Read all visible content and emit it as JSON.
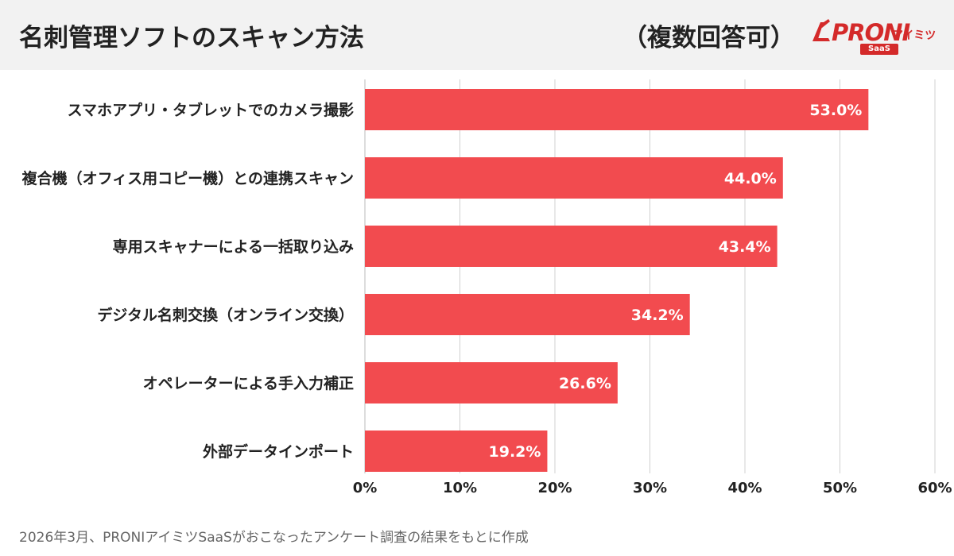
{
  "header": {
    "title": "名刺管理ソフトのスキャン方法",
    "subtitle": "（複数回答可）"
  },
  "logo": {
    "brand": "PRONI",
    "sub": "アイミツ",
    "badge": "SaaS"
  },
  "footer": {
    "note": "2026年3月、PRONIアイミツSaaSがおこなったアンケート調査の結果をもとに作成"
  },
  "colors": {
    "bar": "#f24b4f",
    "grid": "#d0d0d0",
    "brand": "#d42a2a"
  },
  "chart_data": {
    "type": "bar",
    "orientation": "horizontal",
    "categories": [
      "スマホアプリ・タブレットでのカメラ撮影",
      "複合機（オフィス用コピー機）との連携スキャン",
      "専用スキャナーによる一括取り込み",
      "デジタル名刺交換（オンライン交換）",
      "オペレーターによる手入力補正",
      "外部データインポート"
    ],
    "values": [
      53.0,
      44.0,
      43.4,
      34.2,
      26.6,
      19.2
    ],
    "data_labels": [
      "53.0%",
      "44.0%",
      "43.4%",
      "34.2%",
      "26.6%",
      "19.2%"
    ],
    "xlim": [
      0,
      60
    ],
    "xticks": [
      0,
      10,
      20,
      30,
      40,
      50,
      60
    ],
    "xtick_labels": [
      "0%",
      "10%",
      "20%",
      "30%",
      "40%",
      "50%",
      "60%"
    ],
    "grid": true,
    "legend": "none"
  }
}
